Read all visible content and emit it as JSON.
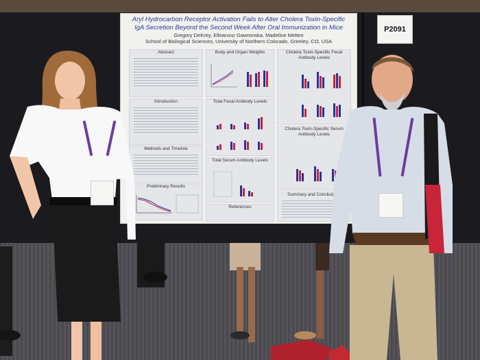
{
  "poster": {
    "title_line1": "Aryl Hydrocarbon Receptor Activation Fails to Alter Cholera Toxin-Specific",
    "title_line2": "IgA Secretion Beyond the Second Week After Oral Immunization in Mice",
    "authors": "Gregory DeKrey, Elleanour Gawronska, Madeline Metten",
    "school": "School of Biological Sciences, University of Northern Colorado, Greeley, CO, USA",
    "sections": {
      "abstract": "Abstract",
      "introduction": "Introduction",
      "methods": "Methods and Timeline",
      "preliminary": "Preliminary Results",
      "body_organ": "Body and Organ Weights",
      "fecal_total": "Total Fecal Antibody Levels",
      "serum_total": "Total Serum Antibody Levels",
      "references": "References",
      "ct_fecal_1": "Cholera Toxin-Specific Fecal",
      "ct_fecal_2": "Antibody Levels",
      "ct_serum_1": "Cholera Toxin-Specific Serum",
      "ct_serum_2": "Antibody Levels",
      "summary": "Summary and Conclusions"
    }
  },
  "booth_sign": "P2091",
  "colors": {
    "bar_blue": "#27339a",
    "bar_red": "#c8243a",
    "lanyard": "#6a3da0"
  }
}
